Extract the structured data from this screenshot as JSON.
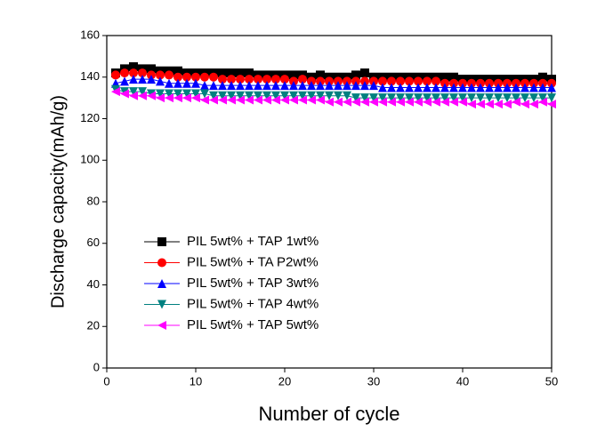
{
  "chart_data": {
    "type": "line",
    "x_label": "Number of cycle",
    "y_label": "Discharge capacity(mAh/g)",
    "x": [
      1,
      2,
      3,
      4,
      5,
      6,
      7,
      8,
      9,
      10,
      11,
      12,
      13,
      14,
      15,
      16,
      17,
      18,
      19,
      20,
      21,
      22,
      23,
      24,
      25,
      26,
      27,
      28,
      29,
      30,
      31,
      32,
      33,
      34,
      35,
      36,
      37,
      38,
      39,
      40,
      41,
      42,
      43,
      44,
      45,
      46,
      47,
      48,
      49,
      50
    ],
    "series": [
      {
        "name": "PIL 5wt% + TAP 1wt%",
        "color": "#000000",
        "marker": "square",
        "values": [
          142,
          144,
          145,
          144,
          144,
          143,
          143,
          143,
          142,
          142,
          142,
          142,
          142,
          142,
          142,
          142,
          141,
          141,
          141,
          141,
          141,
          141,
          140,
          141,
          140,
          140,
          140,
          141,
          142,
          140,
          140,
          140,
          140,
          140,
          140,
          140,
          140,
          140,
          140,
          139,
          139,
          139,
          139,
          139,
          139,
          139,
          139,
          139,
          140,
          139
        ]
      },
      {
        "name": "PIL 5wt% + TA P2wt%",
        "color": "#ff0000",
        "marker": "circle",
        "values": [
          141,
          142,
          142,
          142,
          141,
          141,
          141,
          140,
          140,
          140,
          140,
          140,
          139,
          139,
          139,
          139,
          139,
          139,
          139,
          139,
          138,
          139,
          138,
          138,
          138,
          138,
          138,
          138,
          138,
          138,
          138,
          138,
          138,
          138,
          138,
          138,
          138,
          137,
          137,
          137,
          137,
          137,
          137,
          137,
          137,
          137,
          137,
          137,
          137,
          137
        ]
      },
      {
        "name": "PIL 5wt% + TAP 3wt%",
        "color": "#0000ff",
        "marker": "triangle-up",
        "values": [
          137,
          138,
          139,
          139,
          139,
          138,
          137,
          137,
          137,
          137,
          136,
          136,
          136,
          136,
          136,
          136,
          136,
          136,
          136,
          136,
          136,
          136,
          136,
          136,
          136,
          136,
          136,
          136,
          136,
          136,
          135,
          135,
          135,
          135,
          135,
          135,
          135,
          135,
          135,
          135,
          135,
          135,
          135,
          135,
          135,
          135,
          135,
          135,
          135,
          135
        ]
      },
      {
        "name": "PIL 5wt% + TAP 4wt%",
        "color": "#008080",
        "marker": "triangle-down",
        "values": [
          134,
          133,
          133,
          133,
          132,
          132,
          132,
          132,
          132,
          132,
          132,
          131,
          131,
          131,
          131,
          131,
          131,
          131,
          131,
          131,
          131,
          131,
          131,
          131,
          131,
          131,
          131,
          130,
          130,
          130,
          130,
          130,
          130,
          130,
          130,
          130,
          130,
          130,
          130,
          130,
          130,
          130,
          130,
          130,
          130,
          130,
          130,
          130,
          130,
          130
        ]
      },
      {
        "name": "PIL 5wt% + TAP 5wt%",
        "color": "#ff00ff",
        "marker": "triangle-left",
        "values": [
          133,
          132,
          131,
          131,
          131,
          130,
          130,
          130,
          130,
          130,
          129,
          129,
          129,
          129,
          129,
          129,
          129,
          129,
          129,
          129,
          129,
          129,
          129,
          129,
          128,
          128,
          128,
          128,
          128,
          128,
          128,
          128,
          128,
          128,
          128,
          128,
          128,
          128,
          128,
          128,
          127,
          127,
          127,
          127,
          127,
          128,
          127,
          127,
          128,
          127
        ]
      }
    ],
    "xlim": [
      0,
      50
    ],
    "xticks": [
      0,
      10,
      20,
      30,
      40,
      50
    ],
    "ylim": [
      0,
      160
    ],
    "yticks": [
      0,
      20,
      40,
      60,
      80,
      100,
      120,
      140,
      160
    ],
    "legend": "lower left"
  }
}
